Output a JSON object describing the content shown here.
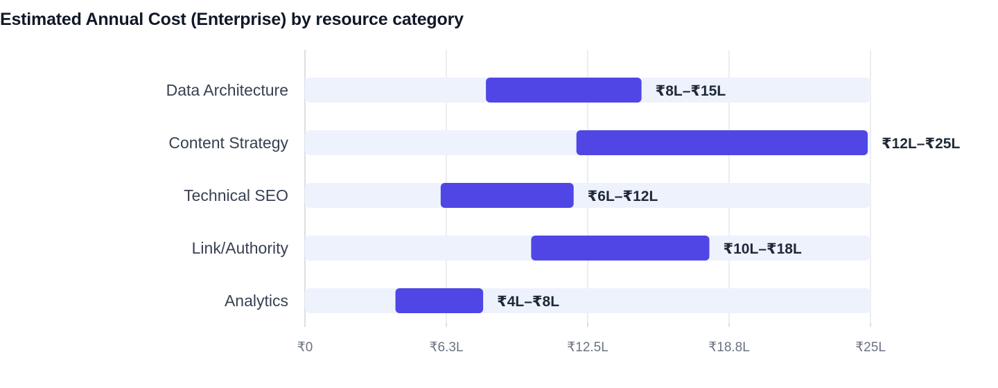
{
  "chart_data": {
    "type": "bar",
    "subtype": "floating-range",
    "title": "Estimated Annual Cost (Enterprise) by resource category",
    "xlabel": "",
    "ylabel": "",
    "unit": "₹ Lakh",
    "xlim": [
      0,
      25
    ],
    "grid": true,
    "legend": "none",
    "x_ticks": [
      {
        "value": 0,
        "label": "₹0"
      },
      {
        "value": 6.25,
        "label": "₹6.3L"
      },
      {
        "value": 12.5,
        "label": "₹12.5L"
      },
      {
        "value": 18.75,
        "label": "₹18.8L"
      },
      {
        "value": 25,
        "label": "₹25L"
      }
    ],
    "categories": [
      "Data Architecture",
      "Content Strategy",
      "Technical SEO",
      "Link/Authority",
      "Analytics"
    ],
    "ranges": [
      {
        "low": 8,
        "high": 15,
        "label": "₹8L–₹15L"
      },
      {
        "low": 12,
        "high": 25,
        "label": "₹12L–₹25L"
      },
      {
        "low": 6,
        "high": 12,
        "label": "₹6L–₹12L"
      },
      {
        "low": 10,
        "high": 18,
        "label": "₹10L–₹18L"
      },
      {
        "low": 4,
        "high": 8,
        "label": "₹4L–₹8L"
      }
    ],
    "colors": {
      "bar": "#4f46e5",
      "track": "#eef2fd",
      "grid": "#e5e7eb",
      "axis": "#d1d5db"
    }
  }
}
